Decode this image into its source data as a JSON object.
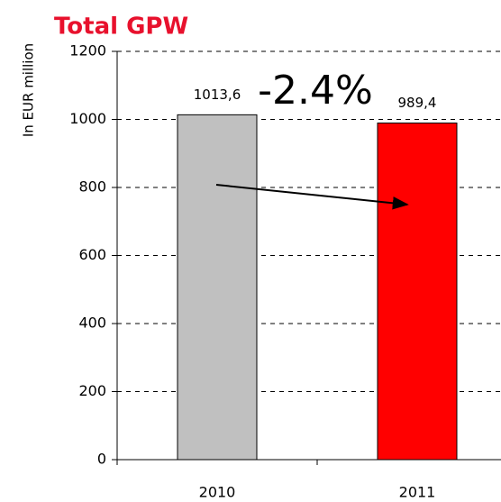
{
  "chart_data": {
    "type": "bar",
    "title": "Total GPW",
    "y_label": "In EUR million",
    "annotation": "-2.4%",
    "categories": [
      "2010",
      "2011"
    ],
    "values": [
      1013.6,
      989.4
    ],
    "value_labels": [
      "1013,6",
      "989,4"
    ],
    "colors": [
      "#c0c0c0",
      "#ff0000"
    ],
    "title_color": "#e8112d",
    "ylim": [
      0,
      1200
    ],
    "yticks": [
      0,
      200,
      400,
      600,
      800,
      1000,
      1200
    ],
    "grid": true
  }
}
